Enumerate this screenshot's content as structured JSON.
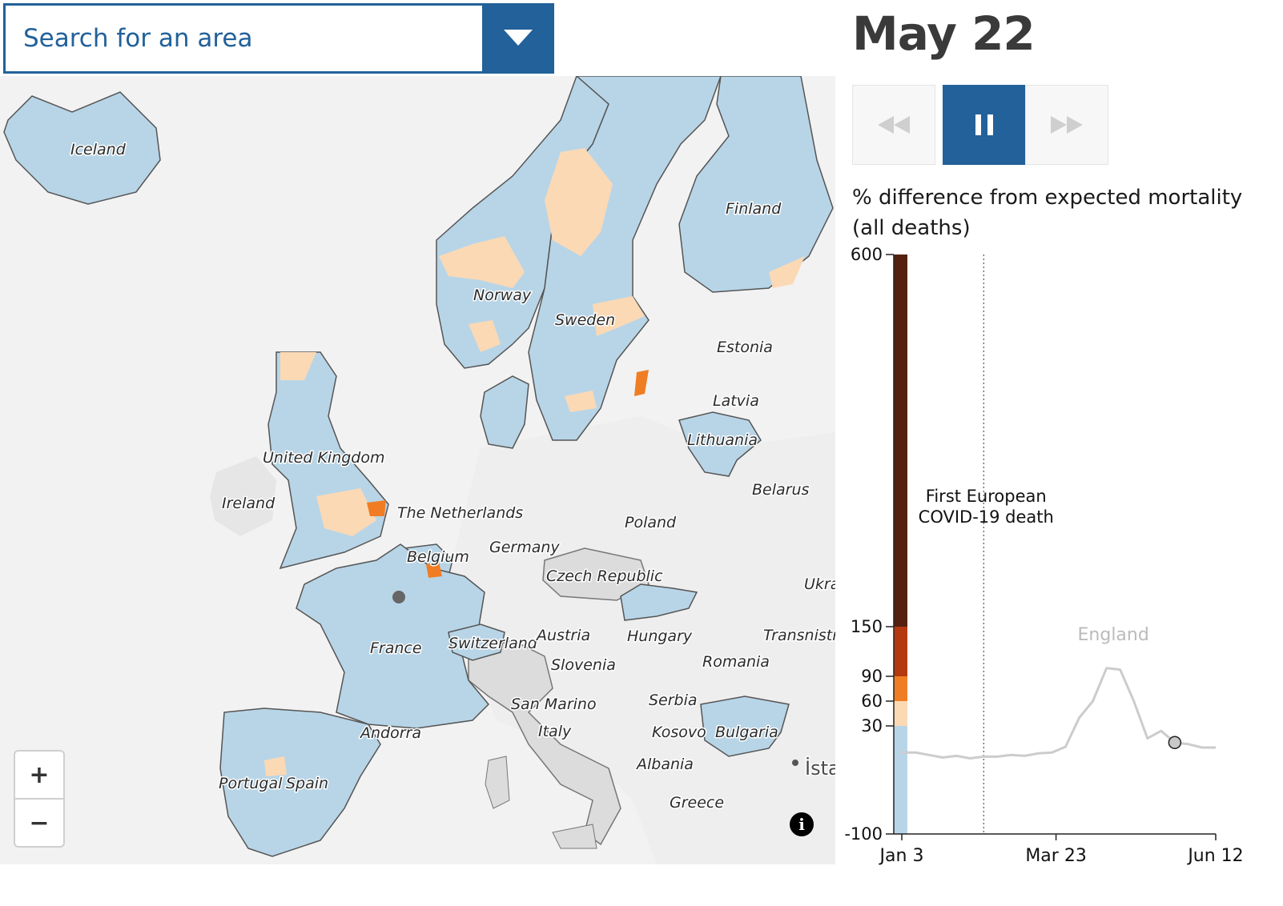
{
  "search": {
    "placeholder": "Search for an area"
  },
  "date": "May 22",
  "controls": {
    "rewind_icon": "rewind-icon",
    "pause_icon": "pause-icon",
    "forward_icon": "fast-forward-icon"
  },
  "zoom": {
    "in": "+",
    "out": "−"
  },
  "info_icon": "i",
  "map_labels": {
    "iceland": "Iceland",
    "norway": "Norway",
    "sweden": "Sweden",
    "finland": "Finland",
    "estonia": "Estonia",
    "latvia": "Latvia",
    "lithuania": "Lithuania",
    "united_kingdom": "United Kingdom",
    "ireland": "Ireland",
    "netherlands": "The Netherlands",
    "belgium": "Belgium",
    "germany": "Germany",
    "poland": "Poland",
    "belarus": "Belarus",
    "czech": "Czech Republic",
    "ukraine": "Ukra",
    "france": "France",
    "switzerland": "Switzerland",
    "austria": "Austria",
    "hungary": "Hungary",
    "transnistria": "Transnistric",
    "slovenia": "Slovenia",
    "romania": "Romania",
    "san_marino": "San Marino",
    "serbia": "Serbia",
    "andorra": "Andorra",
    "italy": "Italy",
    "kosovo": "Kosovo",
    "bulgaria": "Bulgaria",
    "portugal": "Portugal",
    "spain": "Spain",
    "albania": "Albania",
    "greece": "Greece",
    "istanbul": "İsta"
  },
  "colors": {
    "no_data": "#dcdcdc",
    "below": "#b8d5e7",
    "c30": "#fbd9b5",
    "c60": "#f07d24",
    "c90": "#b4390e",
    "c150": "#55200d",
    "water": "#ffffff",
    "land": "#f2f2f2",
    "accent": "#22619a"
  },
  "chart_title": "% difference from expected mortality (all deaths)",
  "chart_data": {
    "type": "line",
    "title": "% difference from expected mortality (all deaths)",
    "ylim": [
      -100,
      600
    ],
    "y_ticks": [
      600,
      150,
      90,
      60,
      30,
      -100
    ],
    "x_ticks": [
      "Jan 3",
      "Mar 23",
      "Jun 12"
    ],
    "color_bands": [
      {
        "from": -100,
        "to": 30,
        "color": "#b8d5e7"
      },
      {
        "from": 30,
        "to": 60,
        "color": "#fbd9b5"
      },
      {
        "from": 60,
        "to": 90,
        "color": "#f07d24"
      },
      {
        "from": 90,
        "to": 150,
        "color": "#b4390e"
      },
      {
        "from": 150,
        "to": 600,
        "color": "#55200d"
      }
    ],
    "annotation": {
      "line1": "First European",
      "line2": "COVID-19 death",
      "week": 6
    },
    "series": [
      {
        "name": "England",
        "weeks": [
          0,
          1,
          2,
          3,
          4,
          5,
          6,
          7,
          8,
          9,
          10,
          11,
          12,
          13,
          14,
          15,
          16,
          17,
          18,
          19,
          20,
          21,
          22,
          23
        ],
        "values": [
          -2,
          -2,
          -5,
          -8,
          -6,
          -9,
          -7,
          -7,
          -5,
          -6,
          -3,
          -2,
          5,
          40,
          60,
          100,
          98,
          60,
          15,
          24,
          10,
          8,
          4,
          4
        ],
        "highlight_week": 20
      }
    ]
  }
}
